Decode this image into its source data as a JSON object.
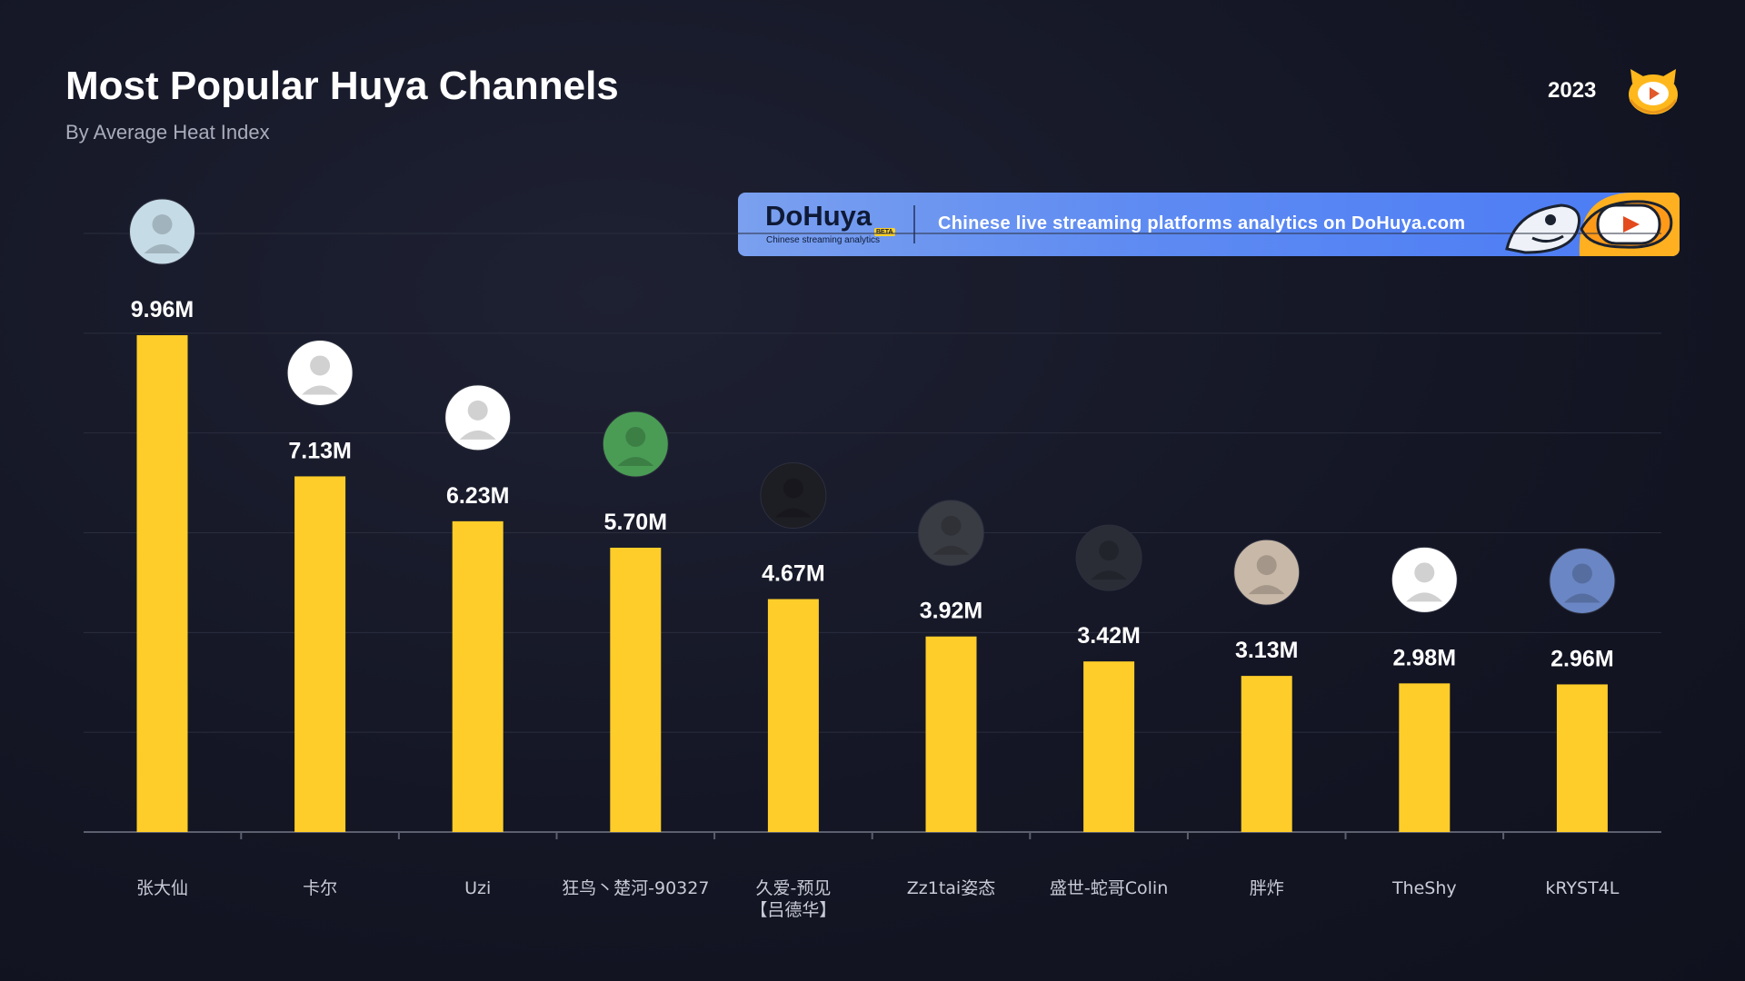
{
  "header": {
    "title": "Most Popular Huya Channels",
    "subtitle": "By Average Heat Index",
    "year": "2023",
    "logo_icon": "huya-tiger-logo-icon"
  },
  "banner": {
    "brand": "DoHuya",
    "beta": "BETA",
    "tagline": "Chinese streaming analytics",
    "text": "Chinese live streaming platforms analytics on DoHuya.com",
    "art_icon": "shark-and-tiger-mascot-icon"
  },
  "colors": {
    "bar": "#ffcd29",
    "banner": "#5d8af2",
    "background": "#141625",
    "label": "#c8cbd6"
  },
  "chart_data": {
    "type": "bar",
    "categories": [
      "张大仙",
      "卡尔",
      "Uzi",
      "狂鸟丶楚河-90327",
      "久爱-预见【吕德华】",
      "Zz1tai姿态",
      "盛世-蛇哥Colin",
      "胖炸",
      "TheShy",
      "kRYST4L"
    ],
    "category_lines": [
      [
        "张大仙"
      ],
      [
        "卡尔"
      ],
      [
        "Uzi"
      ],
      [
        "狂鸟丶楚河-90327"
      ],
      [
        "久爱-预见",
        "【吕德华】"
      ],
      [
        "Zz1tai姿态"
      ],
      [
        "盛世-蛇哥Colin"
      ],
      [
        "胖炸"
      ],
      [
        "TheShy"
      ],
      [
        "kRYST4L"
      ]
    ],
    "values": [
      9.96,
      7.13,
      6.23,
      5.7,
      4.67,
      3.92,
      3.42,
      3.13,
      2.98,
      2.96
    ],
    "value_labels": [
      "9.96M",
      "7.13M",
      "6.23M",
      "5.70M",
      "4.67M",
      "3.92M",
      "3.42M",
      "3.13M",
      "2.98M",
      "2.96M"
    ],
    "unit": "M",
    "ylim": [
      0,
      12
    ],
    "gridlines": [
      2,
      4,
      6,
      8,
      10,
      12
    ],
    "grid": true,
    "avatar_icons": [
      "zhang-daxian-avatar-icon",
      "kaer-logo-avatar-icon",
      "uzi-avatar-icon",
      "green-monster-avatar-icon",
      "jiuai-avatar-icon",
      "zz1tai-avatar-icon",
      "colin-avatar-icon",
      "pangzha-avatar-icon",
      "weibo-gaming-avatar-icon",
      "vegeta-avatar-icon"
    ],
    "avatar_colors": [
      "#c5dbe6",
      "#ffffff",
      "#ffffff",
      "#4a9c55",
      "#1d1d24",
      "#3a3c44",
      "#2a2d36",
      "#c8b8a8",
      "#ffffff",
      "#6a86c4"
    ]
  }
}
